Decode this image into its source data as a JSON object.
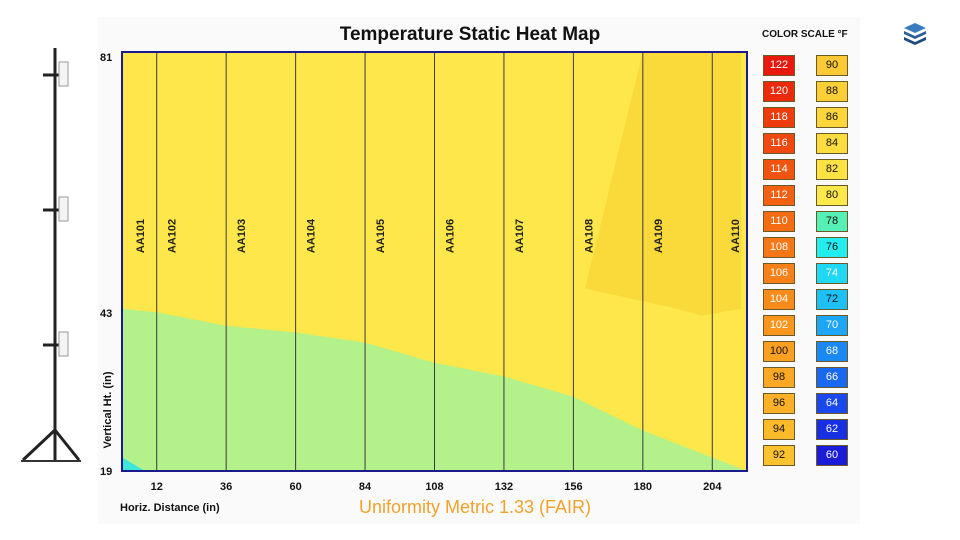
{
  "chart_data": {
    "type": "heatmap",
    "title": "Temperature Static Heat Map",
    "xlabel": "Horiz. Distance (in)",
    "ylabel": "Vertical Ht. (in)",
    "xlim": [
      0,
      216
    ],
    "ylim": [
      19,
      81
    ],
    "x_ticks": [
      12,
      36,
      60,
      84,
      108,
      132,
      156,
      180,
      204
    ],
    "y_ticks": [
      19,
      43,
      81
    ],
    "sensor_columns": [
      {
        "label": "AA101",
        "x": 0
      },
      {
        "label": "AA102",
        "x": 12
      },
      {
        "label": "AA103",
        "x": 36
      },
      {
        "label": "AA104",
        "x": 60
      },
      {
        "label": "AA105",
        "x": 84
      },
      {
        "label": "AA106",
        "x": 108
      },
      {
        "label": "AA107",
        "x": 132
      },
      {
        "label": "AA108",
        "x": 156
      },
      {
        "label": "AA109",
        "x": 180
      },
      {
        "label": "AA110",
        "x": 204
      }
    ],
    "zones": [
      {
        "temp_f": 80,
        "color": "#fde74a",
        "polygon": [
          [
            0,
            81
          ],
          [
            216,
            81
          ],
          [
            216,
            19
          ],
          [
            0,
            19
          ]
        ]
      },
      {
        "temp_f": 82,
        "color": "#fad93a",
        "polygon": [
          [
            180,
            81
          ],
          [
            214,
            81
          ],
          [
            214,
            43
          ],
          [
            200,
            42
          ],
          [
            192,
            43
          ],
          [
            160,
            46
          ]
        ]
      },
      {
        "temp_f": 78,
        "color": "#b3f18a",
        "polygon": [
          [
            0,
            43
          ],
          [
            12,
            42.5
          ],
          [
            36,
            40.5
          ],
          [
            60,
            39.5
          ],
          [
            84,
            38
          ],
          [
            108,
            35
          ],
          [
            132,
            33
          ],
          [
            156,
            30
          ],
          [
            180,
            25
          ],
          [
            204,
            21
          ],
          [
            216,
            19
          ],
          [
            0,
            19
          ]
        ]
      },
      {
        "temp_f": 76,
        "color": "#3ee6d8",
        "polygon": [
          [
            0,
            21
          ],
          [
            8,
            19
          ],
          [
            0,
            19
          ]
        ]
      }
    ],
    "color_scale_left": [
      {
        "value": "122",
        "color": "#e8180c"
      },
      {
        "value": "120",
        "color": "#eb2a0c"
      },
      {
        "value": "118",
        "color": "#ee3c0d"
      },
      {
        "value": "116",
        "color": "#f0480e"
      },
      {
        "value": "114",
        "color": "#f2540f"
      },
      {
        "value": "112",
        "color": "#f46011"
      },
      {
        "value": "110",
        "color": "#f56c13"
      },
      {
        "value": "108",
        "color": "#f77615"
      },
      {
        "value": "106",
        "color": "#f88018"
      },
      {
        "value": "104",
        "color": "#f98b1b"
      },
      {
        "value": "102",
        "color": "#fa951e"
      },
      {
        "value": "100",
        "color": "#fb9f21"
      },
      {
        "value": "98",
        "color": "#fba924"
      },
      {
        "value": "96",
        "color": "#fcb127"
      },
      {
        "value": "94",
        "color": "#fcba2b"
      },
      {
        "value": "92",
        "color": "#fdc32f"
      }
    ],
    "color_scale_right": [
      {
        "value": "90",
        "color": "#fdc934"
      },
      {
        "value": "88",
        "color": "#fdcf37"
      },
      {
        "value": "86",
        "color": "#fdd63b"
      },
      {
        "value": "84",
        "color": "#fddc3f"
      },
      {
        "value": "82",
        "color": "#fde244"
      },
      {
        "value": "80",
        "color": "#fde94b"
      },
      {
        "value": "78",
        "color": "#55f0b4"
      },
      {
        "value": "76",
        "color": "#22eef0"
      },
      {
        "value": "74",
        "color": "#1fd8f5"
      },
      {
        "value": "72",
        "color": "#1ec0f8"
      },
      {
        "value": "70",
        "color": "#1ba6f8"
      },
      {
        "value": "68",
        "color": "#1a88f5"
      },
      {
        "value": "66",
        "color": "#1968f2"
      },
      {
        "value": "64",
        "color": "#1848ee"
      },
      {
        "value": "62",
        "color": "#1830e4"
      },
      {
        "value": "60",
        "color": "#1a1cd8"
      }
    ]
  },
  "color_scale_title": "COLOR SCALE °F",
  "uniformity_metric": "Uniformity Metric 1.33 (FAIR)",
  "icons": {
    "stand": "sensor-tree-stand-icon",
    "logo": "stacked-layers-logo-icon"
  }
}
